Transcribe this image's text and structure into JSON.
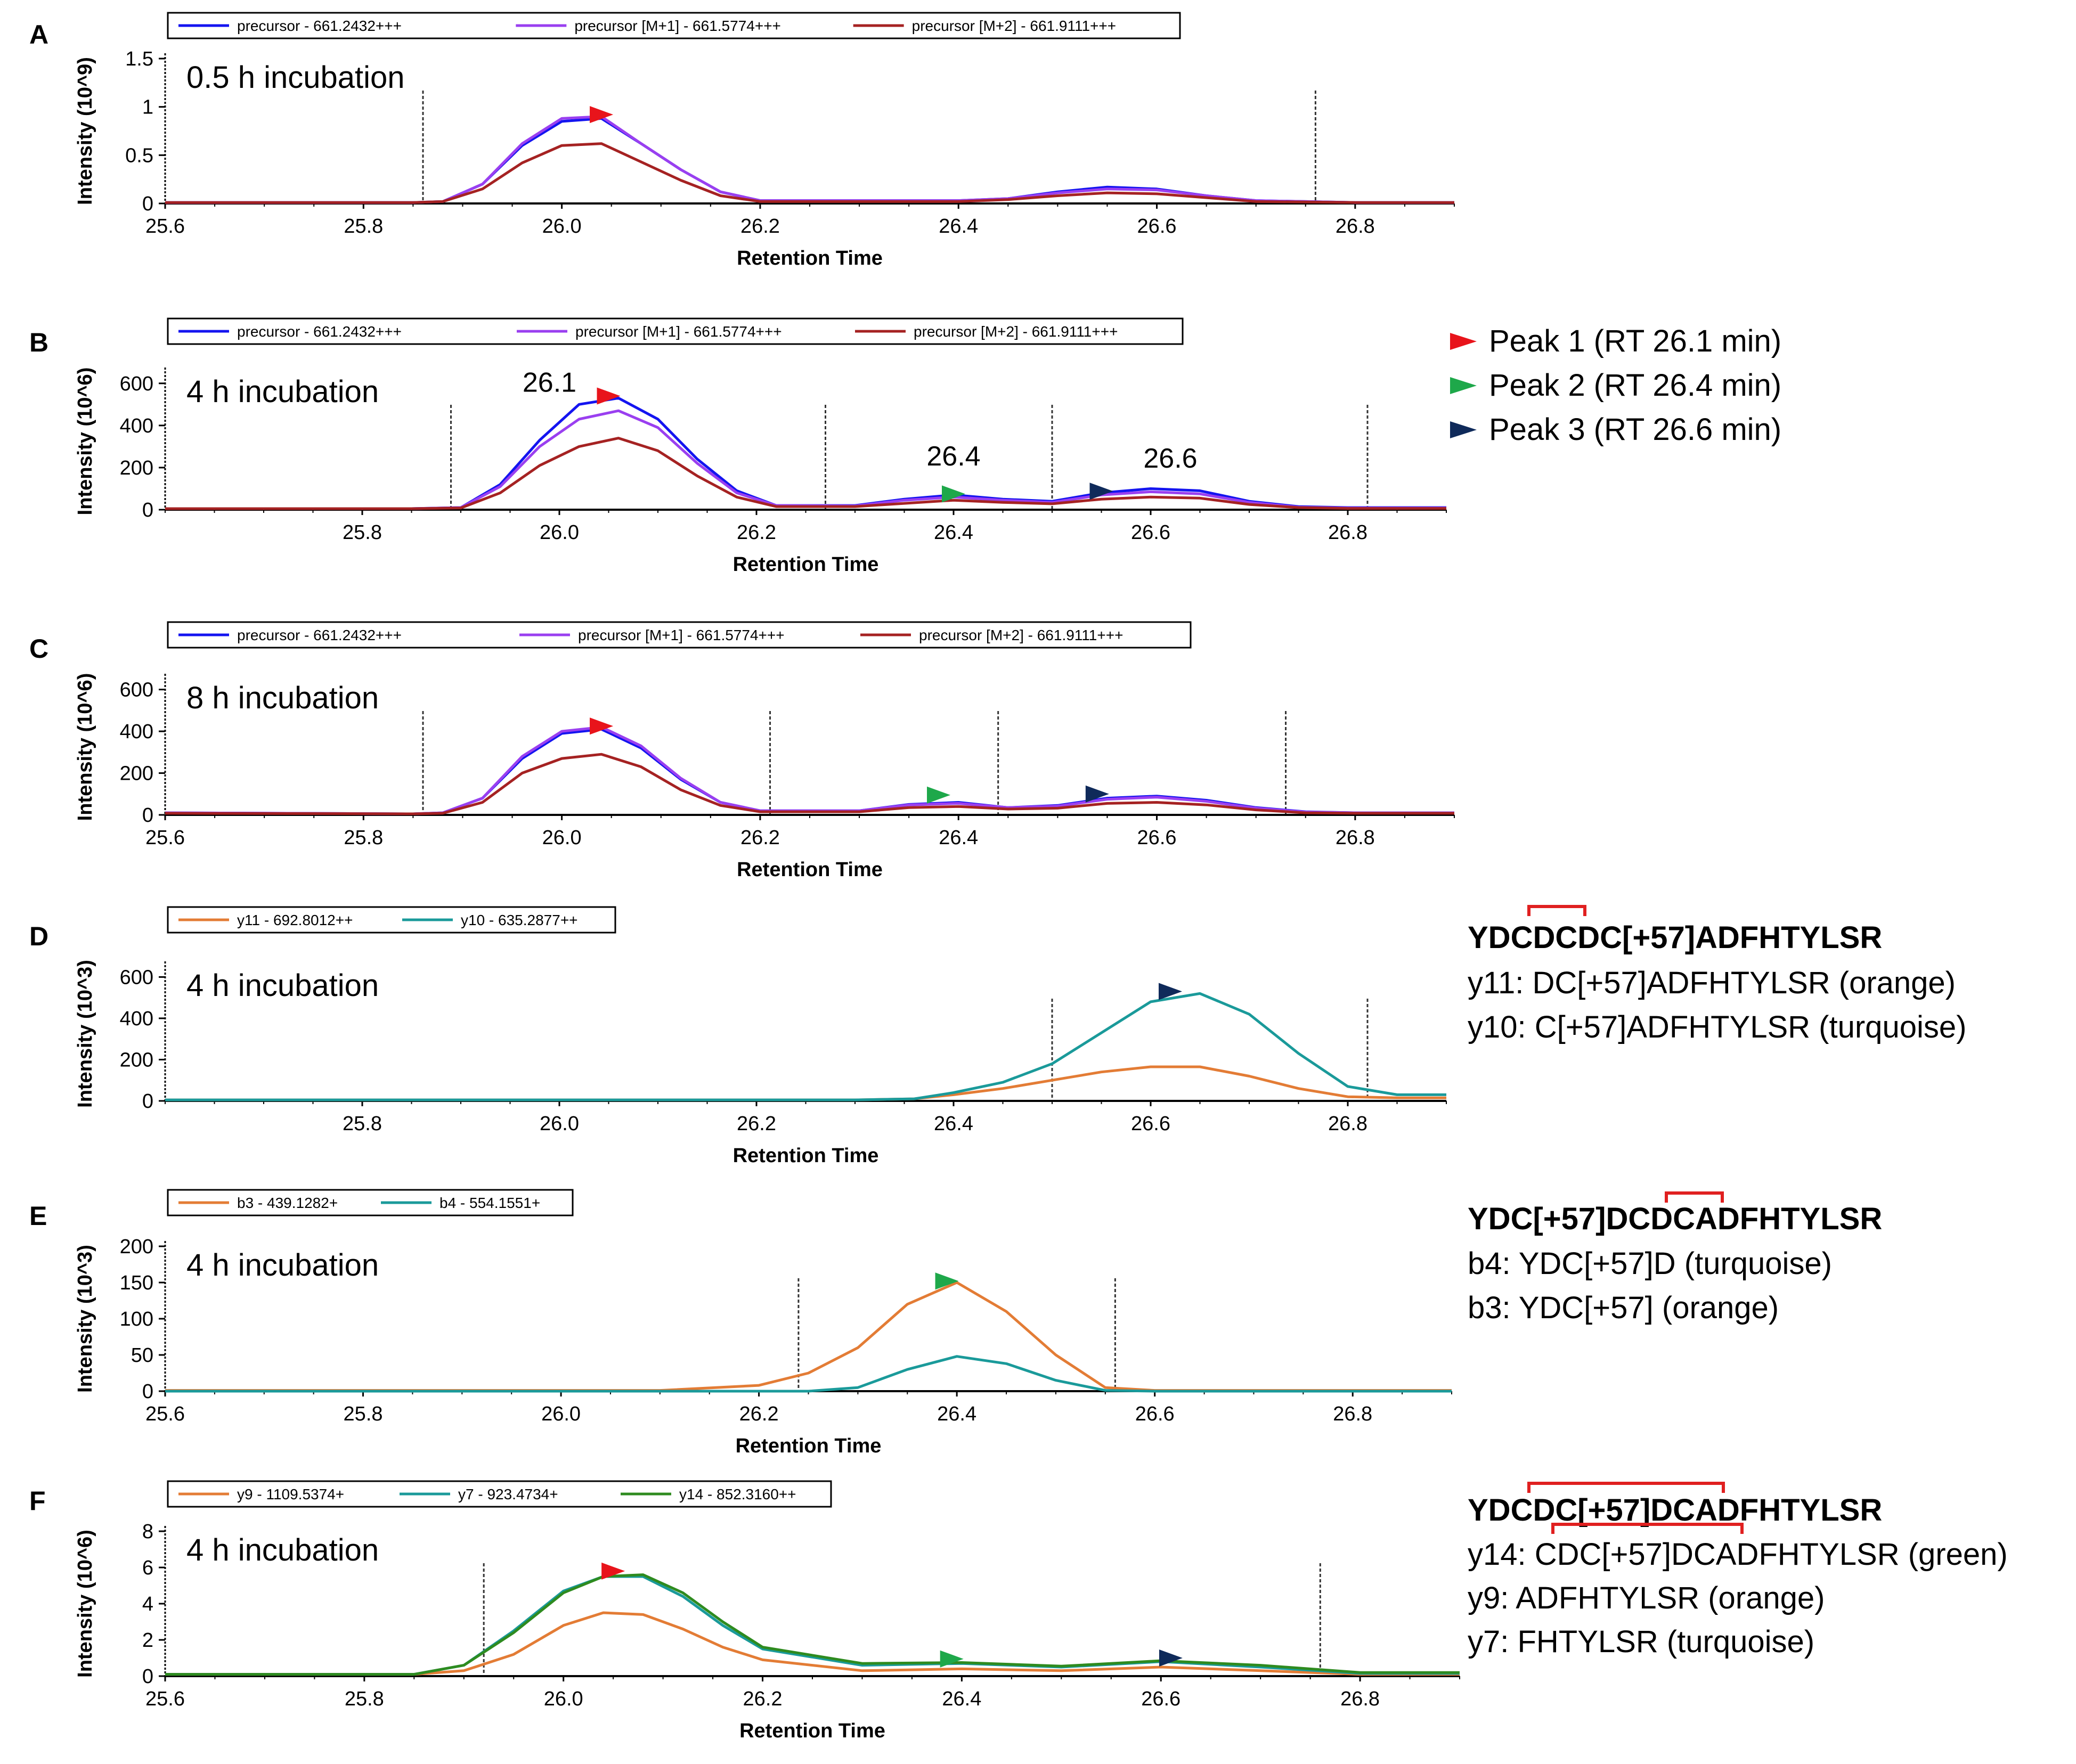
{
  "x_axis_label": "Retention Time",
  "peak_legend": [
    {
      "label": "Peak 1 (RT 26.1 min)",
      "color": "#e8141b"
    },
    {
      "label": "Peak 2 (RT 26.4 min)",
      "color": "#1ea84a"
    },
    {
      "label": "Peak 3 (RT 26.6 min)",
      "color": "#0f2a5a"
    }
  ],
  "annotations": {
    "D": {
      "sequence": "YDCDCDC[+57]ADFHTYLSR",
      "lines": [
        "y11: DC[+57]ADFHTYLSR (orange)",
        "y10: C[+57]ADFHTYLSR (turquoise)"
      ]
    },
    "E": {
      "sequence": "YDC[+57]DCDCADFHTYLSR",
      "lines": [
        "b4: YDC[+57]D (turquoise)",
        "b3: YDC[+57] (orange)"
      ]
    },
    "F": {
      "sequence": "YDCDC[+57]DCADFHTYLSR",
      "lines": [
        "y14: CDC[+57]DCADFHTYLSR (green)",
        "y9: ADFHTYLSR (orange)",
        "y7: FHTYLSR (turquoise)"
      ]
    }
  },
  "chart_data": [
    {
      "id": "A",
      "type": "line",
      "label": "A",
      "incubation": "0.5 h incubation",
      "ylabel": "Intensity (10^9)",
      "xlim": [
        25.6,
        26.9
      ],
      "ylim": [
        0,
        1.5
      ],
      "xticks": [
        "25.6",
        "25.8",
        "26.0",
        "26.2",
        "26.4",
        "26.6",
        "26.8"
      ],
      "yticks": [
        "0",
        "0.5",
        "1",
        "1.5"
      ],
      "legend": [
        "precursor - 661.2432+++",
        "precursor [M+1] - 661.5774+++",
        "precursor [M+2] - 661.9111+++"
      ],
      "colors": [
        "#1414f0",
        "#9a3ff0",
        "#a52222"
      ],
      "x": [
        25.6,
        25.85,
        25.88,
        25.92,
        25.96,
        26.0,
        26.04,
        26.08,
        26.12,
        26.16,
        26.2,
        26.3,
        26.4,
        26.45,
        26.5,
        26.55,
        26.6,
        26.65,
        26.7,
        26.8,
        26.9
      ],
      "series": [
        {
          "name": "precursor - 661.2432+++",
          "values": [
            0.01,
            0.01,
            0.02,
            0.2,
            0.6,
            0.85,
            0.88,
            0.62,
            0.35,
            0.12,
            0.03,
            0.03,
            0.03,
            0.05,
            0.12,
            0.17,
            0.15,
            0.08,
            0.03,
            0.01,
            0.01
          ]
        },
        {
          "name": "precursor [M+1] - 661.5774+++",
          "values": [
            0.01,
            0.01,
            0.02,
            0.2,
            0.62,
            0.88,
            0.9,
            0.62,
            0.35,
            0.12,
            0.03,
            0.03,
            0.03,
            0.05,
            0.11,
            0.15,
            0.14,
            0.08,
            0.03,
            0.01,
            0.01
          ]
        },
        {
          "name": "precursor [M+2] - 661.9111+++",
          "values": [
            0.01,
            0.01,
            0.02,
            0.15,
            0.42,
            0.6,
            0.62,
            0.43,
            0.24,
            0.08,
            0.02,
            0.02,
            0.02,
            0.04,
            0.08,
            0.11,
            0.1,
            0.06,
            0.02,
            0.01,
            0.01
          ]
        }
      ],
      "boundaries": [
        25.86,
        26.76
      ],
      "markers": [
        {
          "x": 26.04,
          "y": 0.92,
          "peak": 1
        }
      ],
      "peak_labels": []
    },
    {
      "id": "B",
      "type": "line",
      "label": "B",
      "incubation": "4 h incubation",
      "ylabel": "Intensity (10^6)",
      "xlim": [
        25.6,
        26.9
      ],
      "ylim": [
        0,
        650
      ],
      "xticks": [
        "25.8",
        "26.0",
        "26.2",
        "26.4",
        "26.6",
        "26.8"
      ],
      "yticks": [
        "0",
        "200",
        "400",
        "600"
      ],
      "legend": [
        "precursor - 661.2432+++",
        "precursor [M+1] - 661.5774+++",
        "precursor [M+2] - 661.9111+++"
      ],
      "colors": [
        "#1414f0",
        "#9a3ff0",
        "#a52222"
      ],
      "x": [
        25.6,
        25.85,
        25.9,
        25.94,
        25.98,
        26.02,
        26.06,
        26.1,
        26.14,
        26.18,
        26.22,
        26.3,
        26.35,
        26.4,
        26.45,
        26.5,
        26.55,
        26.6,
        26.65,
        26.7,
        26.75,
        26.8,
        26.9
      ],
      "series": [
        {
          "name": "precursor - 661.2432+++",
          "values": [
            5,
            5,
            10,
            120,
            330,
            500,
            530,
            430,
            240,
            90,
            20,
            20,
            50,
            70,
            50,
            40,
            80,
            100,
            90,
            40,
            15,
            10,
            10
          ]
        },
        {
          "name": "precursor [M+1] - 661.5774+++",
          "values": [
            5,
            5,
            10,
            110,
            300,
            430,
            470,
            390,
            220,
            80,
            20,
            18,
            45,
            60,
            45,
            35,
            70,
            85,
            75,
            35,
            12,
            8,
            8
          ]
        },
        {
          "name": "precursor [M+2] - 661.9111+++",
          "values": [
            5,
            5,
            8,
            80,
            210,
            300,
            340,
            280,
            160,
            60,
            15,
            15,
            30,
            45,
            35,
            28,
            50,
            60,
            55,
            25,
            10,
            6,
            6
          ]
        }
      ],
      "boundaries": [
        25.89,
        26.27,
        26.5,
        26.82
      ],
      "markers": [
        {
          "x": 26.05,
          "y": 540,
          "peak": 1
        },
        {
          "x": 26.4,
          "y": 75,
          "peak": 2
        },
        {
          "x": 26.55,
          "y": 88,
          "peak": 3
        }
      ],
      "peak_labels": [
        {
          "text": "26.1",
          "x": 25.99,
          "y": 560
        },
        {
          "text": "26.4",
          "x": 26.4,
          "y": 210
        },
        {
          "text": "26.6",
          "x": 26.62,
          "y": 200
        }
      ]
    },
    {
      "id": "C",
      "type": "line",
      "label": "C",
      "incubation": "8 h incubation",
      "ylabel": "Intensity (10^6)",
      "xlim": [
        25.6,
        26.9
      ],
      "ylim": [
        0,
        650
      ],
      "xticks": [
        "25.6",
        "25.8",
        "26.0",
        "26.2",
        "26.4",
        "26.6",
        "26.8"
      ],
      "yticks": [
        "0",
        "200",
        "400",
        "600"
      ],
      "legend": [
        "precursor - 661.2432+++",
        "precursor [M+1] - 661.5774+++",
        "precursor [M+2] - 661.9111+++"
      ],
      "colors": [
        "#1414f0",
        "#9a3ff0",
        "#a52222"
      ],
      "x": [
        25.6,
        25.85,
        25.88,
        25.92,
        25.96,
        26.0,
        26.04,
        26.08,
        26.12,
        26.16,
        26.2,
        26.3,
        26.35,
        26.4,
        26.45,
        26.5,
        26.55,
        26.6,
        26.65,
        26.7,
        26.75,
        26.8,
        26.9
      ],
      "series": [
        {
          "name": "precursor - 661.2432+++",
          "values": [
            10,
            5,
            10,
            80,
            270,
            390,
            410,
            320,
            170,
            60,
            20,
            20,
            50,
            60,
            35,
            45,
            80,
            90,
            70,
            35,
            15,
            10,
            10
          ]
        },
        {
          "name": "precursor [M+1] - 661.5774+++",
          "values": [
            10,
            5,
            10,
            80,
            280,
            400,
            420,
            330,
            175,
            60,
            20,
            20,
            48,
            55,
            35,
            42,
            75,
            85,
            65,
            32,
            14,
            10,
            10
          ]
        },
        {
          "name": "precursor [M+2] - 661.9111+++",
          "values": [
            8,
            5,
            8,
            60,
            200,
            270,
            290,
            230,
            120,
            45,
            15,
            15,
            35,
            40,
            28,
            32,
            55,
            60,
            48,
            24,
            10,
            8,
            8
          ]
        }
      ],
      "boundaries": [
        25.86,
        26.21,
        26.44,
        26.73
      ],
      "markers": [
        {
          "x": 26.04,
          "y": 425,
          "peak": 1
        },
        {
          "x": 26.38,
          "y": 95,
          "peak": 2
        },
        {
          "x": 26.54,
          "y": 100,
          "peak": 3
        }
      ],
      "peak_labels": []
    },
    {
      "id": "D",
      "type": "line",
      "label": "D",
      "incubation": "4 h incubation",
      "ylabel": "Intensity (10^3)",
      "xlim": [
        25.6,
        26.9
      ],
      "ylim": [
        0,
        650
      ],
      "xticks": [
        "25.8",
        "26.0",
        "26.2",
        "26.4",
        "26.6",
        "26.8"
      ],
      "yticks": [
        "0",
        "200",
        "400",
        "600"
      ],
      "legend": [
        "y11 - 692.8012++",
        "y10 - 635.2877++"
      ],
      "colors": [
        "#e37c35",
        "#1a9a9a"
      ],
      "x": [
        25.6,
        26.3,
        26.36,
        26.4,
        26.45,
        26.5,
        26.55,
        26.6,
        26.65,
        26.7,
        26.75,
        26.8,
        26.85,
        26.9
      ],
      "series": [
        {
          "name": "y11 - 692.8012++",
          "values": [
            5,
            5,
            10,
            30,
            60,
            100,
            140,
            165,
            165,
            120,
            60,
            20,
            15,
            15
          ]
        },
        {
          "name": "y10 - 635.2877++",
          "values": [
            5,
            5,
            10,
            40,
            90,
            180,
            330,
            480,
            520,
            420,
            230,
            70,
            30,
            30
          ]
        }
      ],
      "boundaries": [
        26.5,
        26.82
      ],
      "markers": [
        {
          "x": 26.62,
          "y": 530,
          "peak": 3
        }
      ],
      "peak_labels": []
    },
    {
      "id": "E",
      "type": "line",
      "label": "E",
      "incubation": "4 h incubation",
      "ylabel": "Intensity (10^3)",
      "xlim": [
        25.6,
        26.9
      ],
      "ylim": [
        0,
        200
      ],
      "xticks": [
        "25.6",
        "25.8",
        "26.0",
        "26.2",
        "26.4",
        "26.6",
        "26.8"
      ],
      "yticks": [
        "0",
        "50",
        "100",
        "150",
        "200"
      ],
      "legend": [
        "b3 - 439.1282+",
        "b4 - 554.1551+"
      ],
      "colors": [
        "#e37c35",
        "#1a9a9a"
      ],
      "x": [
        25.6,
        26.1,
        26.2,
        26.25,
        26.3,
        26.35,
        26.4,
        26.45,
        26.5,
        26.55,
        26.6,
        26.9
      ],
      "series": [
        {
          "name": "b3 - 439.1282+",
          "values": [
            1,
            1,
            8,
            25,
            60,
            120,
            150,
            110,
            50,
            5,
            1,
            1
          ]
        },
        {
          "name": "b4 - 554.1551+",
          "values": [
            0,
            0,
            0,
            0,
            5,
            30,
            48,
            38,
            15,
            1,
            0,
            0
          ]
        }
      ],
      "boundaries": [
        26.24,
        26.56
      ],
      "markers": [
        {
          "x": 26.39,
          "y": 152,
          "peak": 2
        }
      ],
      "peak_labels": []
    },
    {
      "id": "F",
      "type": "line",
      "label": "F",
      "incubation": "4 h incubation",
      "ylabel": "Intensity (10^6)",
      "xlim": [
        25.6,
        26.9
      ],
      "ylim": [
        0,
        8
      ],
      "xticks": [
        "25.6",
        "25.8",
        "26.0",
        "26.2",
        "26.4",
        "26.6",
        "26.8"
      ],
      "yticks": [
        "0",
        "2",
        "4",
        "6",
        "8"
      ],
      "legend": [
        "y9 - 1109.5374+",
        "y7 - 923.4734+",
        "y14 - 852.3160++"
      ],
      "colors": [
        "#e37c35",
        "#1a9a9a",
        "#2e8b1f"
      ],
      "x": [
        25.6,
        25.85,
        25.9,
        25.95,
        26.0,
        26.04,
        26.08,
        26.12,
        26.16,
        26.2,
        26.3,
        26.4,
        26.5,
        26.6,
        26.7,
        26.8,
        26.9
      ],
      "series": [
        {
          "name": "y9 - 1109.5374+",
          "values": [
            0.1,
            0.1,
            0.3,
            1.2,
            2.8,
            3.5,
            3.4,
            2.6,
            1.6,
            0.9,
            0.3,
            0.4,
            0.3,
            0.5,
            0.3,
            0.1,
            0.1
          ]
        },
        {
          "name": "y7 - 923.4734+",
          "values": [
            0.1,
            0.1,
            0.6,
            2.5,
            4.7,
            5.5,
            5.5,
            4.4,
            2.8,
            1.5,
            0.6,
            0.7,
            0.5,
            0.8,
            0.5,
            0.15,
            0.15
          ]
        },
        {
          "name": "y14 - 852.3160++",
          "values": [
            0.1,
            0.1,
            0.6,
            2.4,
            4.6,
            5.5,
            5.6,
            4.6,
            3.0,
            1.6,
            0.7,
            0.75,
            0.55,
            0.85,
            0.6,
            0.2,
            0.2
          ]
        }
      ],
      "boundaries": [
        25.92,
        26.76
      ],
      "markers": [
        {
          "x": 26.05,
          "y": 5.8,
          "peak": 1
        },
        {
          "x": 26.39,
          "y": 0.95,
          "peak": 2
        },
        {
          "x": 26.61,
          "y": 1.0,
          "peak": 3
        }
      ],
      "peak_labels": []
    }
  ]
}
